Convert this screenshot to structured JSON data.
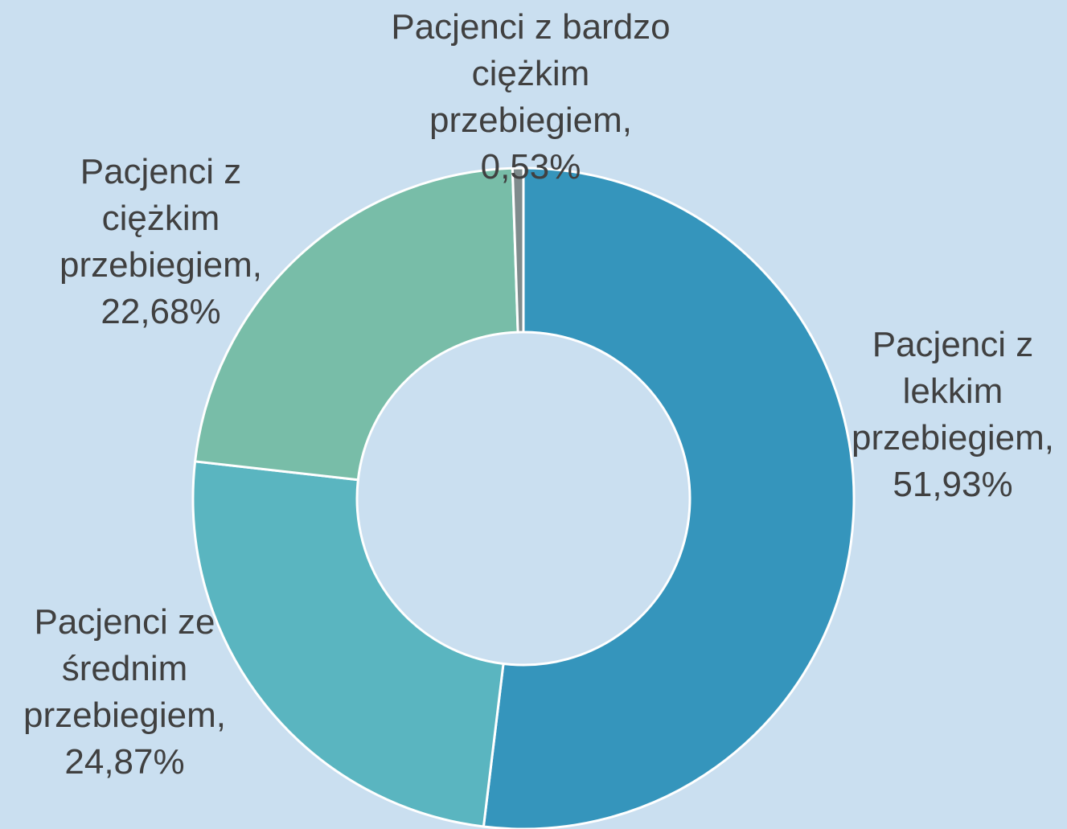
{
  "chart_data": {
    "type": "donut",
    "categories": [
      "Pacjenci z lekkim przebiegiem,",
      "Pacjenci ze średnim przebiegiem,",
      "Pacjenci z ciężkim przebiegiem,",
      "Pacjenci z bardzo ciężkim przebiegiem,"
    ],
    "values": [
      51.93,
      24.87,
      22.68,
      0.53
    ],
    "value_labels": [
      "51,93%",
      "24,87%",
      "22,68%",
      "0,53%"
    ],
    "colors": [
      "#3595bc",
      "#5ab5c0",
      "#78bda8",
      "#7f8c8d"
    ]
  }
}
